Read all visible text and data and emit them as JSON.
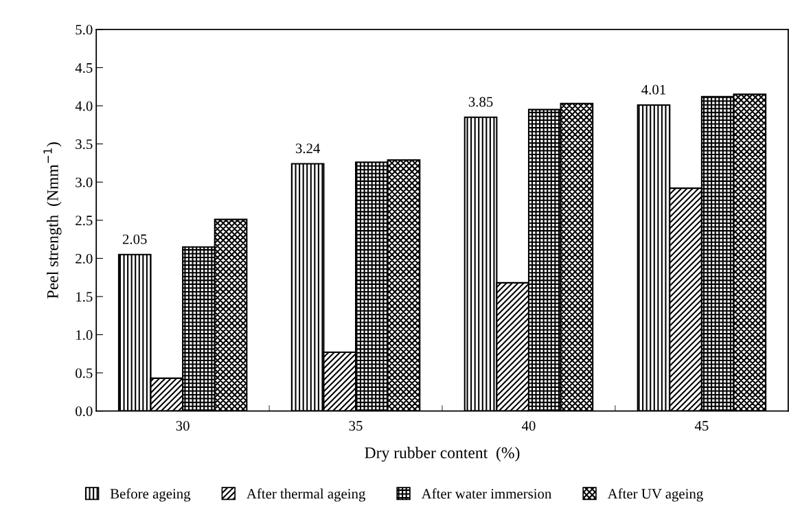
{
  "chart_data": {
    "type": "bar",
    "xlabel": "Dry rubber content  (%)",
    "ylabel": "Peel strength  (Nmm$^{−1}$)",
    "categories": [
      "30",
      "35",
      "40",
      "45"
    ],
    "series": [
      {
        "name": "Before ageing",
        "color": "#000000",
        "values": [
          2.05,
          3.24,
          3.85,
          4.01
        ],
        "value_labels": [
          "2.05",
          "3.24",
          "3.85",
          "4.01"
        ]
      },
      {
        "name": "After thermal ageing",
        "color": "#000000",
        "values": [
          0.43,
          0.77,
          1.68,
          2.92
        ]
      },
      {
        "name": "After water immersion",
        "color": "#000000",
        "values": [
          2.15,
          3.26,
          3.95,
          4.12
        ]
      },
      {
        "name": "After UV ageing",
        "color": "#000000",
        "values": [
          2.51,
          3.29,
          4.03,
          4.15
        ]
      }
    ],
    "ylim": [
      0,
      5
    ],
    "yticks": [
      {
        "value": 0,
        "label": "0.0"
      },
      {
        "value": 0.5,
        "label": "0.5"
      },
      {
        "value": 1,
        "label": "1.0"
      },
      {
        "value": 1.5,
        "label": "1.5"
      },
      {
        "value": 2,
        "label": "2.0"
      },
      {
        "value": 2.5,
        "label": "2.5"
      },
      {
        "value": 3,
        "label": "3.0"
      },
      {
        "value": 3.5,
        "label": "3.5"
      },
      {
        "value": 4,
        "label": "4.0"
      },
      {
        "value": 4.5,
        "label": "4.5"
      },
      {
        "value": 5,
        "label": "5.0"
      }
    ],
    "grid": false,
    "legend": "bottom"
  }
}
